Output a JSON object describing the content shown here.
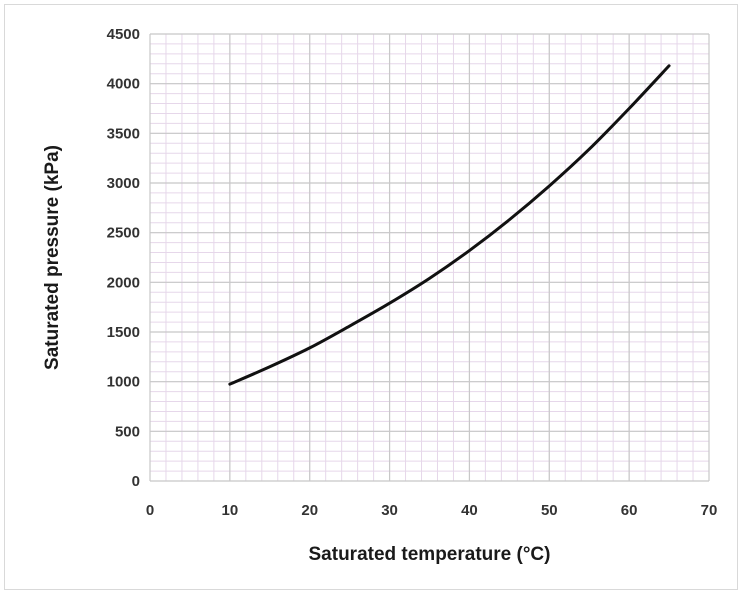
{
  "chart_data": {
    "type": "line",
    "title": "",
    "xlabel": "Saturated temperature (°C)",
    "ylabel": "Saturated pressure (kPa)",
    "xlim": [
      0,
      70
    ],
    "ylim": [
      0,
      4500
    ],
    "xticks": [
      0,
      10,
      20,
      30,
      40,
      50,
      60,
      70
    ],
    "yticks": [
      0,
      500,
      1000,
      1500,
      2000,
      2500,
      3000,
      3500,
      4000,
      4500
    ],
    "grid": true,
    "minor_grid": true,
    "legend": "none",
    "line_color": "#111111",
    "series": [
      {
        "x": [
          10,
          15,
          20,
          25,
          30,
          35,
          40,
          45,
          50,
          55,
          60,
          65
        ],
        "y": [
          975,
          1150,
          1340,
          1560,
          1790,
          2040,
          2320,
          2630,
          2970,
          3340,
          3750,
          4180
        ]
      }
    ]
  }
}
